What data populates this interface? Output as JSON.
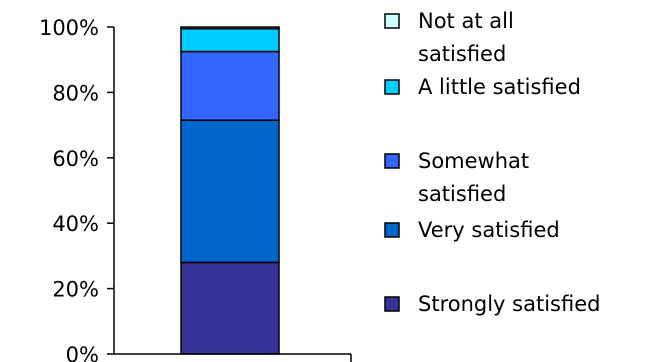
{
  "chart_data": {
    "type": "bar",
    "stacked": true,
    "percent_stacked": true,
    "categories": [
      ""
    ],
    "series": [
      {
        "name": "Strongly satisfied",
        "values": [
          28
        ],
        "color": "#333399"
      },
      {
        "name": "Very satisfied",
        "values": [
          43.5
        ],
        "color": "#0066CC"
      },
      {
        "name": "Somewhat satisfied",
        "values": [
          21
        ],
        "color": "#3366FF"
      },
      {
        "name": "A little satisfied",
        "values": [
          7
        ],
        "color": "#00CCFF"
      },
      {
        "name": "Not at all satisfied",
        "values": [
          0.5
        ],
        "color": "#CCFFFF"
      }
    ],
    "y_ticks": [
      "0%",
      "20%",
      "40%",
      "60%",
      "80%",
      "100%"
    ],
    "ylim": [
      0,
      100
    ],
    "grid": false,
    "legend_position": "right",
    "legend_labels": [
      [
        "Not at all",
        "satisfied"
      ],
      [
        "A little satisfied"
      ],
      [
        "Somewhat",
        "satisfied"
      ],
      [
        "Very satisfied"
      ],
      [
        "Strongly satisfied"
      ]
    ]
  }
}
